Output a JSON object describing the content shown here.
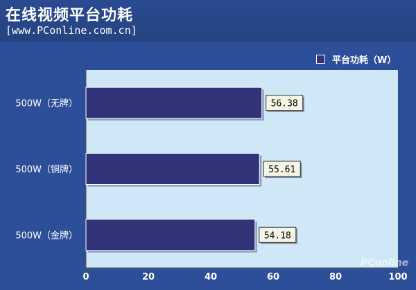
{
  "header": {
    "title": "在线视频平台功耗",
    "subtitle": "[www.PConline.com.cn]"
  },
  "legend": {
    "label": "平台功耗（W）"
  },
  "watermark": {
    "text": "PConline"
  },
  "colors": {
    "background": "#2d4f9a",
    "plot_area": "#cfe7f7",
    "bar": "#33337a",
    "label_box": "#f5f5e6"
  },
  "chart_data": {
    "type": "bar",
    "orientation": "horizontal",
    "categories": [
      "500W（无牌）",
      "500W（铜牌）",
      "500W（金牌）"
    ],
    "series": [
      {
        "name": "平台功耗（W）",
        "values": [
          56.38,
          55.61,
          54.18
        ],
        "value_labels": [
          "56.38",
          "55.61",
          "54.18"
        ]
      }
    ],
    "title": "在线视频平台功耗",
    "xlabel": "",
    "ylabel": "",
    "xlim": [
      0,
      100
    ],
    "xticks": [
      0,
      20,
      40,
      60,
      80,
      100
    ],
    "xtick_labels": [
      "0",
      "20",
      "40",
      "60",
      "80",
      "100"
    ],
    "grid": false,
    "legend_position": "top-right"
  }
}
